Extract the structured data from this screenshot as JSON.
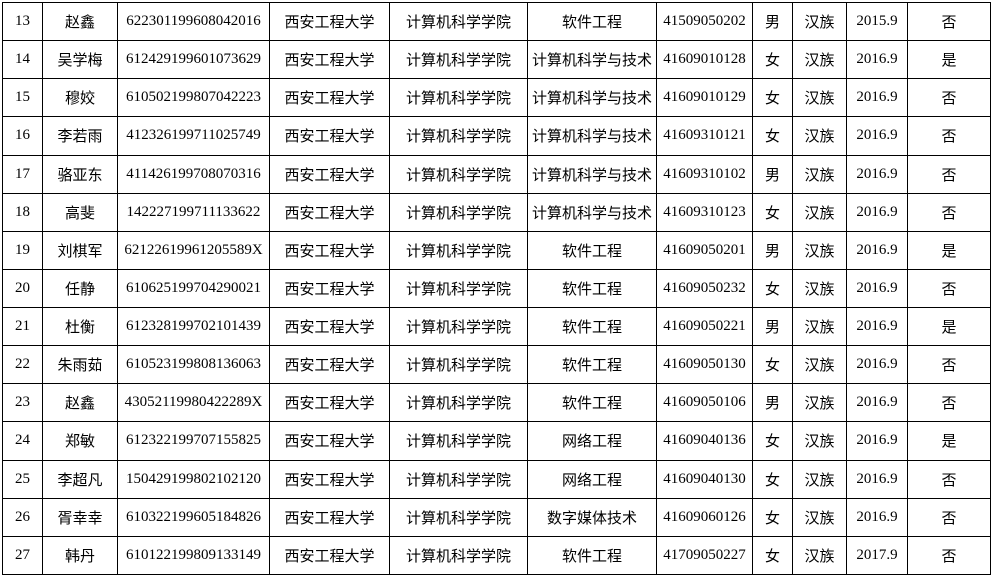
{
  "table": {
    "rows": [
      [
        "13",
        "赵鑫",
        "622301199608042016",
        "西安工程大学",
        "计算机科学学院",
        "软件工程",
        "41509050202",
        "男",
        "汉族",
        "2015.9",
        "否"
      ],
      [
        "14",
        "吴学梅",
        "612429199601073629",
        "西安工程大学",
        "计算机科学学院",
        "计算机科学与技术",
        "41609010128",
        "女",
        "汉族",
        "2016.9",
        "是"
      ],
      [
        "15",
        "穆姣",
        "610502199807042223",
        "西安工程大学",
        "计算机科学学院",
        "计算机科学与技术",
        "41609010129",
        "女",
        "汉族",
        "2016.9",
        "否"
      ],
      [
        "16",
        "李若雨",
        "412326199711025749",
        "西安工程大学",
        "计算机科学学院",
        "计算机科学与技术",
        "41609310121",
        "女",
        "汉族",
        "2016.9",
        "否"
      ],
      [
        "17",
        "骆亚东",
        "411426199708070316",
        "西安工程大学",
        "计算机科学学院",
        "计算机科学与技术",
        "41609310102",
        "男",
        "汉族",
        "2016.9",
        "否"
      ],
      [
        "18",
        "高斐",
        "142227199711133622",
        "西安工程大学",
        "计算机科学学院",
        "计算机科学与技术",
        "41609310123",
        "女",
        "汉族",
        "2016.9",
        "否"
      ],
      [
        "19",
        "刘棋军",
        "62122619961205589X",
        "西安工程大学",
        "计算机科学学院",
        "软件工程",
        "41609050201",
        "男",
        "汉族",
        "2016.9",
        "是"
      ],
      [
        "20",
        "任静",
        "610625199704290021",
        "西安工程大学",
        "计算机科学学院",
        "软件工程",
        "41609050232",
        "女",
        "汉族",
        "2016.9",
        "否"
      ],
      [
        "21",
        "杜衡",
        "612328199702101439",
        "西安工程大学",
        "计算机科学学院",
        "软件工程",
        "41609050221",
        "男",
        "汉族",
        "2016.9",
        "是"
      ],
      [
        "22",
        "朱雨茹",
        "610523199808136063",
        "西安工程大学",
        "计算机科学学院",
        "软件工程",
        "41609050130",
        "女",
        "汉族",
        "2016.9",
        "否"
      ],
      [
        "23",
        "赵鑫",
        "43052119980422289X",
        "西安工程大学",
        "计算机科学学院",
        "软件工程",
        "41609050106",
        "男",
        "汉族",
        "2016.9",
        "否"
      ],
      [
        "24",
        "郑敏",
        "612322199707155825",
        "西安工程大学",
        "计算机科学学院",
        "网络工程",
        "41609040136",
        "女",
        "汉族",
        "2016.9",
        "是"
      ],
      [
        "25",
        "李超凡",
        "150429199802102120",
        "西安工程大学",
        "计算机科学学院",
        "网络工程",
        "41609040130",
        "女",
        "汉族",
        "2016.9",
        "否"
      ],
      [
        "26",
        "胥幸幸",
        "610322199605184826",
        "西安工程大学",
        "计算机科学学院",
        "数字媒体技术",
        "41609060126",
        "女",
        "汉族",
        "2016.9",
        "否"
      ],
      [
        "27",
        "韩丹",
        "610122199809133149",
        "西安工程大学",
        "计算机科学学院",
        "软件工程",
        "41709050227",
        "女",
        "汉族",
        "2017.9",
        "否"
      ]
    ]
  }
}
